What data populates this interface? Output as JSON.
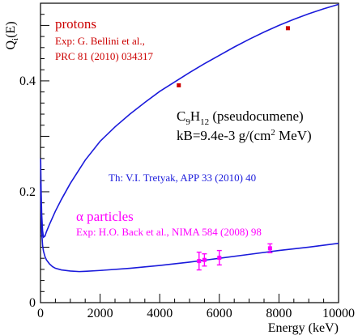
{
  "chart_data": {
    "type": "line",
    "xlabel": "Energy (keV)",
    "ylabel_main": "Q",
    "ylabel_sub": "i",
    "ylabel_tail": "(E)",
    "xlim": [
      0,
      10000
    ],
    "ylim": [
      0,
      0.54
    ],
    "xticks": [
      0,
      2000,
      4000,
      6000,
      8000,
      10000
    ],
    "yticks": [
      0.2,
      0.4
    ],
    "ytick_labels": [
      "0.2",
      "0.4"
    ],
    "y_zero_label": "0",
    "colors": {
      "theory": "#1a1adb",
      "protons": "#cc0000",
      "alphas": "#ff00ff",
      "material": "#000000"
    },
    "series": [
      {
        "name": "protons",
        "x": [
          5,
          20,
          40,
          70,
          100,
          150,
          200,
          300,
          400,
          500,
          700,
          1000,
          1500,
          2000,
          2500,
          3000,
          3500,
          4000,
          4500,
          5000,
          5500,
          6000,
          6500,
          7000,
          7500,
          8000,
          8500,
          9000,
          9500,
          10000
        ],
        "y": [
          0.26,
          0.205,
          0.16,
          0.13,
          0.118,
          0.12,
          0.128,
          0.141,
          0.153,
          0.165,
          0.186,
          0.215,
          0.257,
          0.291,
          0.317,
          0.34,
          0.361,
          0.381,
          0.398,
          0.415,
          0.431,
          0.446,
          0.461,
          0.475,
          0.488,
          0.5,
          0.511,
          0.521,
          0.53,
          0.538
        ]
      },
      {
        "name": "alpha particles",
        "x": [
          5,
          20,
          40,
          70,
          100,
          150,
          200,
          300,
          400,
          500,
          700,
          1000,
          1300,
          1500,
          2000,
          3000,
          4000,
          5000,
          6000,
          7000,
          8000,
          9000,
          10000
        ],
        "y": [
          0.215,
          0.162,
          0.128,
          0.103,
          0.093,
          0.083,
          0.077,
          0.07,
          0.065,
          0.062,
          0.059,
          0.057,
          0.056,
          0.0565,
          0.058,
          0.062,
          0.067,
          0.073,
          0.08,
          0.087,
          0.094,
          0.1,
          0.107
        ]
      }
    ],
    "proton_points": {
      "x": [
        4640,
        8300
      ],
      "y": [
        0.392,
        0.495
      ]
    },
    "alpha_points": {
      "x": [
        5320,
        5500,
        6000,
        7700
      ],
      "y": [
        0.075,
        0.077,
        0.081,
        0.098
      ],
      "err": [
        0.016,
        0.011,
        0.013,
        0.008
      ]
    },
    "annotations": {
      "protons_label": "protons",
      "protons_exp_1": "Exp: G. Bellini et al.,",
      "protons_exp_2": "PRC 81 (2010) 034317",
      "material_c": "C",
      "material_c_sub": "9",
      "material_h": "H",
      "material_h_sub": "12",
      "material_name": " (pseudocumene)",
      "kb_prefix": "kB=9.4e-3 g/(cm",
      "kb_sup": "2",
      "kb_suffix": " MeV)",
      "theory": "Th: V.I. Tretyak, APP 33 (2010) 40",
      "alpha_symbol": "α",
      "alpha_label": " particles",
      "alpha_exp": "Exp: H.O. Back et al., NIMA 584 (2008) 98"
    }
  }
}
